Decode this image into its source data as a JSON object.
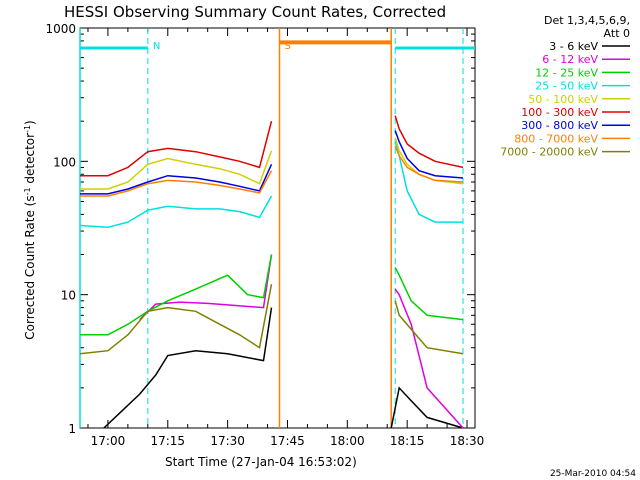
{
  "chart_data": {
    "type": "line",
    "title": "HESSI Observing Summary Count Rates, Corrected",
    "xlabel": "Start Time (27-Jan-04 16:53:02)",
    "ylabel_main": "Corrected Count Rate (s",
    "ylabel_sup1": "-1",
    "ylabel_mid": " detector",
    "ylabel_sup2": "-1",
    "ylabel_end": ")",
    "y_scale": "log",
    "ylim": [
      1,
      1000
    ],
    "xlim": [
      "16:53",
      "18:32"
    ],
    "x_ticks": [
      "17:00",
      "17:15",
      "17:30",
      "17:45",
      "18:00",
      "18:15",
      "18:30"
    ],
    "y_ticks": [
      "1",
      "10",
      "100",
      "1000"
    ],
    "legend_header": "Det 1,3,4,5,6,9,",
    "legend_header2": "Att 0",
    "footer_date": "25-Mar-2010 04:54",
    "markers": [
      {
        "label": "N",
        "color": "#00e0e0",
        "time": "17:10",
        "kind": "night"
      },
      {
        "label": "S",
        "color": "#ff8000",
        "time": "17:43",
        "kind": "saa"
      }
    ],
    "night_intervals": [
      [
        "16:53",
        "17:10"
      ],
      [
        "18:12",
        "18:32"
      ]
    ],
    "saa_interval": [
      "17:43",
      "18:11"
    ],
    "boundary_lines": [
      {
        "time": "16:53",
        "color": "#00e0e0"
      },
      {
        "time": "17:10",
        "color": "#00e0e0"
      },
      {
        "time": "18:11",
        "color": "#00e0e0"
      },
      {
        "time": "18:12",
        "color": "#00e0e0"
      },
      {
        "time": "18:29",
        "color": "#00e0e0"
      }
    ],
    "saa_lines": [
      {
        "time": "17:43",
        "color": "#ff8000"
      },
      {
        "time": "18:11",
        "color": "#ff8000"
      }
    ],
    "series": [
      {
        "name": "3 - 6 keV",
        "color": "#000000",
        "x": [
          "16:59",
          "17:08",
          "17:12",
          "17:15",
          "17:22",
          "17:30",
          "17:39",
          "17:41",
          "18:11",
          "18:13",
          "18:16",
          "18:20",
          "18:29"
        ],
        "y": [
          1.0,
          1.8,
          2.5,
          3.5,
          3.8,
          3.6,
          3.2,
          8.0,
          1.0,
          2.0,
          1.6,
          1.2,
          1.0
        ]
      },
      {
        "name": "6 - 12 keV",
        "color": "#e000e0",
        "x": [
          "17:08",
          "17:12",
          "17:18",
          "17:25",
          "17:32",
          "17:39",
          "17:41",
          "18:12",
          "18:13",
          "18:16",
          "18:20",
          "18:29"
        ],
        "y": [
          6.5,
          8.5,
          8.8,
          8.6,
          8.3,
          8.0,
          20,
          11,
          10,
          6.0,
          2.0,
          1.0
        ]
      },
      {
        "name": "12 - 25 keV",
        "color": "#00d000",
        "x": [
          "16:53",
          "17:00",
          "17:05",
          "17:10",
          "17:15",
          "17:22",
          "17:30",
          "17:35",
          "17:39",
          "17:41",
          "18:12",
          "18:13",
          "18:16",
          "18:20",
          "18:29"
        ],
        "y": [
          5.0,
          5.0,
          6.0,
          7.5,
          9.0,
          11.0,
          14.0,
          10.0,
          9.5,
          20,
          16,
          14,
          9.0,
          7.0,
          6.5
        ]
      },
      {
        "name": "25 - 50 keV",
        "color": "#00e0e0",
        "x": [
          "16:53",
          "17:00",
          "17:05",
          "17:10",
          "17:15",
          "17:22",
          "17:28",
          "17:33",
          "17:38",
          "17:41",
          "18:12",
          "18:13",
          "18:15",
          "18:18",
          "18:22",
          "18:29"
        ],
        "y": [
          33,
          32,
          35,
          43,
          46,
          44,
          44,
          42,
          38,
          55,
          140,
          110,
          60,
          40,
          35,
          35
        ]
      },
      {
        "name": "50 - 100 keV",
        "color": "#d0d000",
        "x": [
          "16:53",
          "17:00",
          "17:05",
          "17:10",
          "17:15",
          "17:22",
          "17:28",
          "17:33",
          "17:38",
          "17:41",
          "18:12",
          "18:13",
          "18:15",
          "18:18",
          "18:22",
          "18:29"
        ],
        "y": [
          62,
          62,
          70,
          95,
          105,
          95,
          88,
          80,
          68,
          120,
          150,
          120,
          95,
          80,
          72,
          68
        ]
      },
      {
        "name": "100 - 300 keV",
        "color": "#e00000",
        "x": [
          "16:53",
          "17:00",
          "17:05",
          "17:10",
          "17:15",
          "17:22",
          "17:28",
          "17:33",
          "17:38",
          "17:41",
          "18:12",
          "18:13",
          "18:15",
          "18:18",
          "18:22",
          "18:29"
        ],
        "y": [
          78,
          78,
          90,
          118,
          125,
          118,
          108,
          100,
          90,
          200,
          220,
          175,
          135,
          115,
          100,
          90
        ]
      },
      {
        "name": "300 - 800 keV",
        "color": "#0000e0",
        "x": [
          "16:53",
          "17:00",
          "17:05",
          "17:10",
          "17:15",
          "17:22",
          "17:28",
          "17:33",
          "17:38",
          "17:41",
          "18:12",
          "18:13",
          "18:15",
          "18:18",
          "18:22",
          "18:29"
        ],
        "y": [
          57,
          57,
          62,
          70,
          78,
          75,
          70,
          65,
          60,
          95,
          170,
          140,
          105,
          85,
          78,
          75
        ]
      },
      {
        "name": "800 - 7000 keV",
        "color": "#ff8000",
        "x": [
          "16:53",
          "17:00",
          "17:05",
          "17:10",
          "17:15",
          "17:22",
          "17:28",
          "17:33",
          "17:38",
          "17:41",
          "18:12",
          "18:13",
          "18:15",
          "18:18",
          "18:22",
          "18:29"
        ],
        "y": [
          55,
          55,
          60,
          68,
          72,
          70,
          66,
          62,
          58,
          85,
          130,
          110,
          90,
          80,
          72,
          70
        ]
      },
      {
        "name": "7000 - 20000 keV",
        "color": "#808000",
        "x": [
          "16:53",
          "17:00",
          "17:05",
          "17:10",
          "17:15",
          "17:22",
          "17:28",
          "17:33",
          "17:38",
          "17:41",
          "18:12",
          "18:13",
          "18:16",
          "18:20",
          "18:29"
        ],
        "y": [
          3.6,
          3.8,
          5.0,
          7.5,
          8.0,
          7.5,
          6.0,
          5.0,
          4.0,
          12,
          9.0,
          7.0,
          5.5,
          4.0,
          3.6
        ]
      }
    ],
    "saa_bar_y": 780
  }
}
